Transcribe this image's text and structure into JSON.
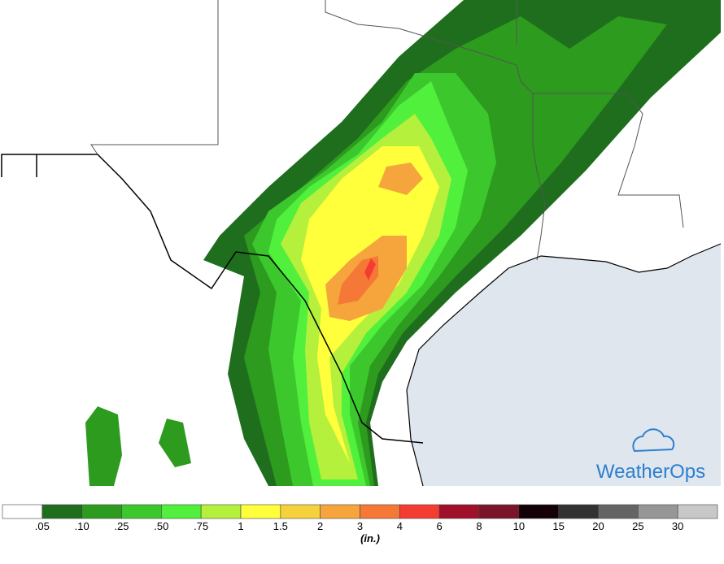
{
  "logo": "WeatherOps",
  "legend": {
    "labels": [
      ".05",
      ".10",
      ".25",
      ".50",
      ".75",
      "1",
      "1.5",
      "2",
      "3",
      "4",
      "6",
      "8",
      "10",
      "15",
      "20",
      "25",
      "30"
    ],
    "colors": [
      "#ffffff",
      "#1e6e1e",
      "#2d9b1e",
      "#3cc82d",
      "#50f03c",
      "#b4f03c",
      "#ffff3c",
      "#f5d23c",
      "#f5a53c",
      "#f57837",
      "#f53c32",
      "#a0102a",
      "#7a1428",
      "#140005",
      "#323232",
      "#646464",
      "#969696",
      "#c8c8c8"
    ],
    "unit": "(in.)"
  }
}
